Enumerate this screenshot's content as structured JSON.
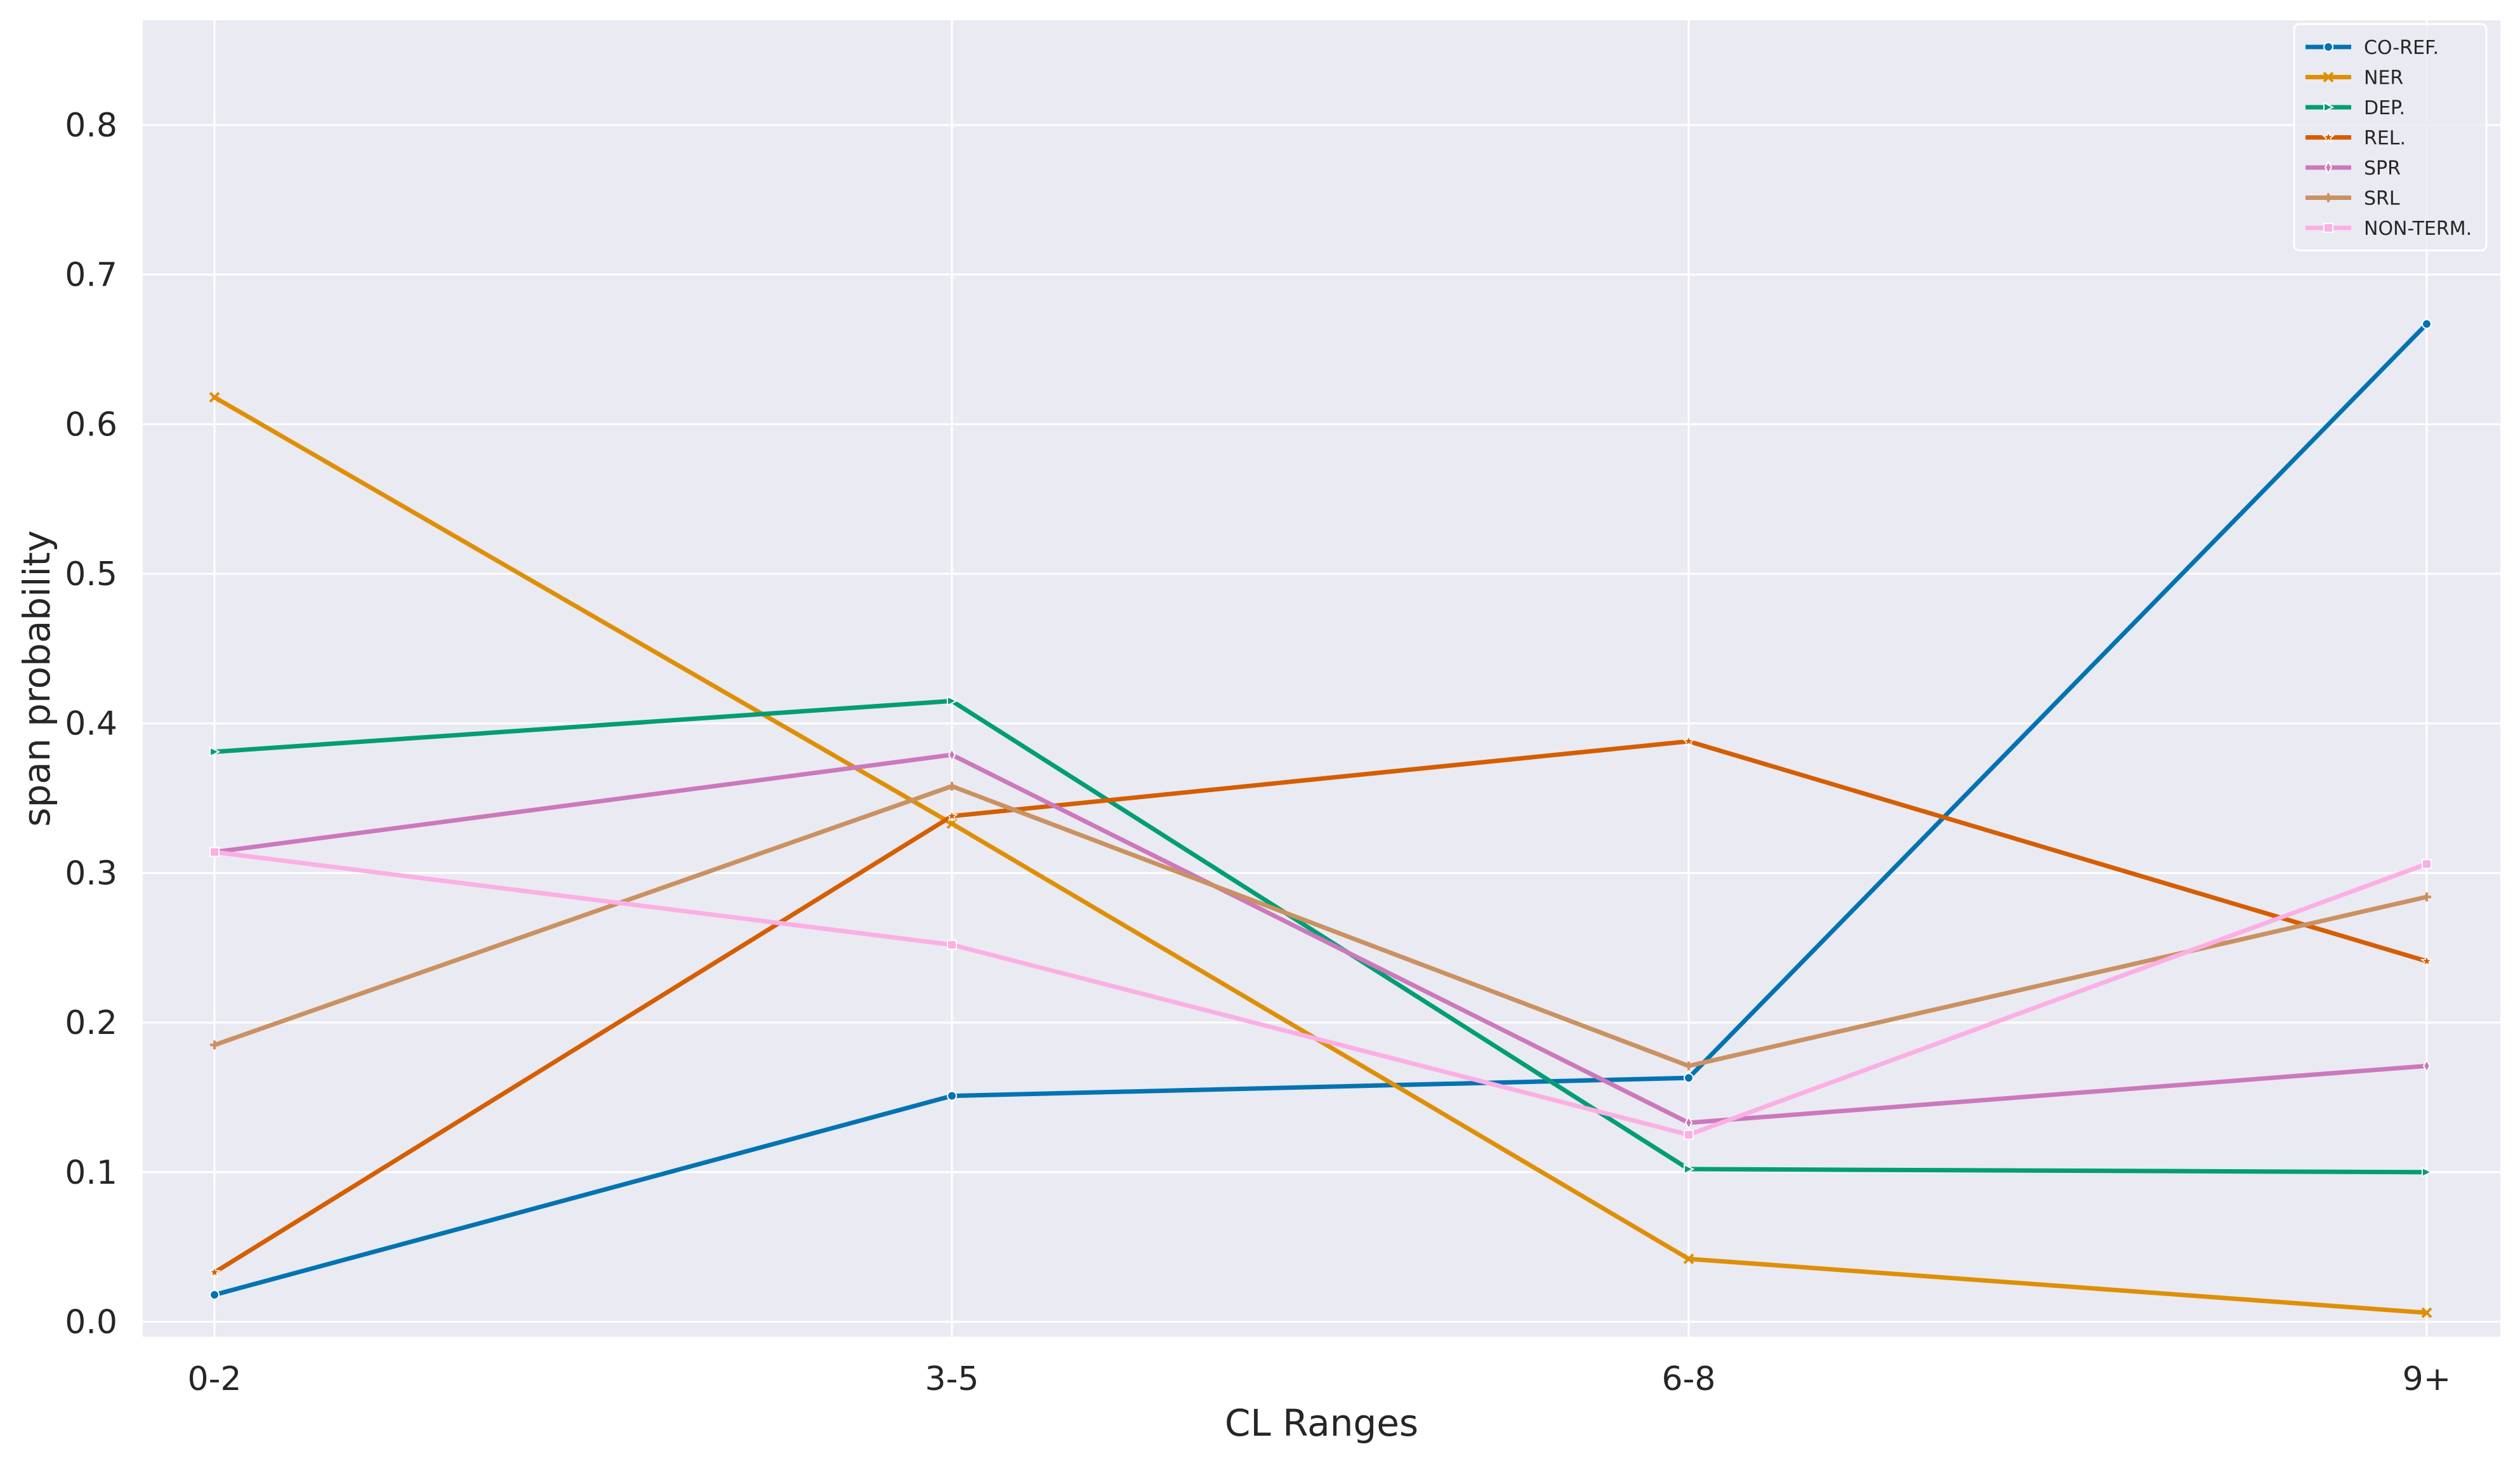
{
  "chart_data": {
    "type": "line",
    "title": "",
    "xlabel": "CL Ranges",
    "ylabel": "span probability",
    "categories": [
      "0-2",
      "3-5",
      "6-8",
      "9+"
    ],
    "ylim": [
      -0.01,
      0.87
    ],
    "yticks": [
      "0.0",
      "0.1",
      "0.2",
      "0.3",
      "0.4",
      "0.5",
      "0.6",
      "0.7",
      "0.8"
    ],
    "grid": true,
    "legend_position": "top-right",
    "background_color": "#eaeaf2",
    "grid_color": "#ffffff",
    "series": [
      {
        "name": "CO-REF.",
        "color": "#0173b2",
        "marker": "circle",
        "values": [
          0.018,
          0.151,
          0.163,
          0.667
        ]
      },
      {
        "name": "NER",
        "color": "#de8f05",
        "marker": "x",
        "values": [
          0.618,
          0.333,
          0.042,
          0.006
        ]
      },
      {
        "name": "DEP.",
        "color": "#029e73",
        "marker": "triangle-right",
        "values": [
          0.381,
          0.415,
          0.102,
          0.1
        ]
      },
      {
        "name": "REL.",
        "color": "#d55e00",
        "marker": "star",
        "values": [
          0.033,
          0.338,
          0.388,
          0.241
        ]
      },
      {
        "name": "SPR",
        "color": "#cc78bc",
        "marker": "thin-diamond",
        "values": [
          0.314,
          0.379,
          0.133,
          0.171
        ]
      },
      {
        "name": "SRL",
        "color": "#ca9161",
        "marker": "plus",
        "values": [
          0.185,
          0.358,
          0.171,
          0.284
        ]
      },
      {
        "name": "NON-TERM.",
        "color": "#fbafe4",
        "marker": "square",
        "values": [
          0.314,
          0.252,
          0.125,
          0.306
        ]
      }
    ]
  }
}
